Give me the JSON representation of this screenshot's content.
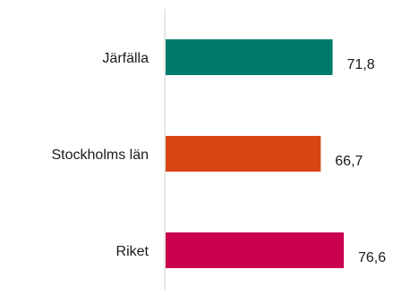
{
  "chart_data": {
    "type": "bar",
    "orientation": "horizontal",
    "categories": [
      "Järfälla",
      "Stockholms län",
      "Riket"
    ],
    "values": [
      71.8,
      66.7,
      76.6
    ],
    "value_labels": [
      "71,8",
      "66,7",
      "76,6"
    ],
    "colors": [
      "#007a6a",
      "#d94415",
      "#c8004e"
    ],
    "title": "",
    "xlabel": "",
    "ylabel": "",
    "grid": false,
    "legend": "none"
  }
}
